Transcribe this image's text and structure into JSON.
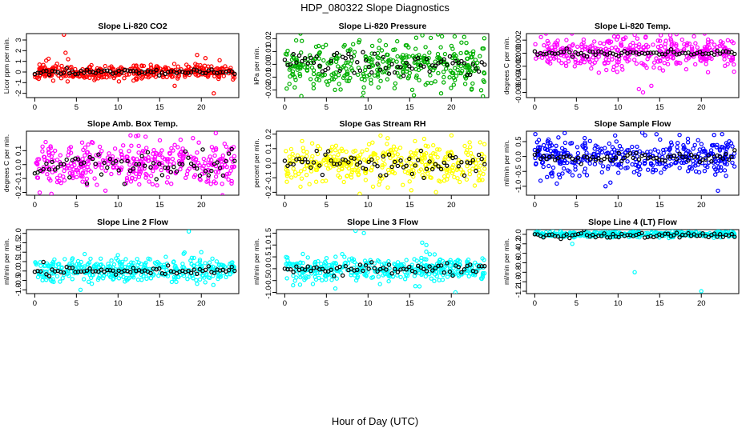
{
  "title": "HDP_080322  Slope Diagnostics",
  "xlabel": "Hour of Day (UTC)",
  "colors": {
    "ref": "#000000"
  },
  "chart_data": [
    {
      "type": "scatter",
      "title": "Slope Li-820 CO2",
      "ylabel": "Licor ppm per min.",
      "color": "#ff0000",
      "ylim": [
        -2.4,
        3.6
      ],
      "yticks": [
        -2,
        -1,
        0,
        1,
        2,
        3
      ],
      "xlim": [
        -1,
        24.5
      ],
      "xticks": [
        0,
        5,
        10,
        15,
        20
      ],
      "base": 0,
      "spread": 0.35,
      "outliers": [
        [
          3.5,
          3.5
        ],
        [
          3.7,
          1.8
        ],
        [
          19.5,
          1.6
        ],
        [
          20.5,
          1.3
        ],
        [
          21.5,
          -2.0
        ],
        [
          16.8,
          -1.3
        ],
        [
          4.0,
          1.2
        ],
        [
          22.2,
          1.1
        ]
      ],
      "ref_base": 0,
      "ref_spread": 0.12,
      "seed": 11
    },
    {
      "type": "scatter",
      "title": "Slope Li-820 Pressure",
      "ylabel": "kPa per min.",
      "color": "#00b000",
      "ylim": [
        -0.026,
        0.024
      ],
      "yticks": [
        -0.02,
        -0.01,
        0.0,
        0.01,
        0.02
      ],
      "xlim": [
        -1,
        24.5
      ],
      "xticks": [
        0,
        5,
        10,
        15,
        20
      ],
      "base": 0,
      "spread": 0.009,
      "outliers": [
        [
          23.8,
          -0.025
        ],
        [
          7.2,
          0.015
        ],
        [
          13.5,
          0.018
        ],
        [
          9.5,
          -0.018
        ]
      ],
      "ref_base": 0,
      "ref_spread": 0.004,
      "seed": 23
    },
    {
      "type": "scatter",
      "title": "Slope Li-820 Temp.",
      "ylabel": "degrees C per min.",
      "color": "#ff00ff",
      "ylim": [
        -0.0068,
        0.003
      ],
      "yticks": [
        -0.006,
        -0.004,
        -0.002,
        0.0,
        0.002
      ],
      "xlim": [
        -1,
        24.5
      ],
      "xticks": [
        0,
        5,
        10,
        15,
        20
      ],
      "base": 0,
      "spread": 0.0012,
      "outliers": [
        [
          13.0,
          -0.006
        ],
        [
          12.5,
          -0.0055
        ],
        [
          14.0,
          -0.005
        ],
        [
          10.0,
          0.0025
        ],
        [
          12.0,
          0.0028
        ]
      ],
      "ref_base": 0,
      "ref_spread": 0.0002,
      "seed": 37
    },
    {
      "type": "scatter",
      "title": "Slope Amb. Box Temp.",
      "ylabel": "degrees C per min.",
      "color": "#ff00ff",
      "ylim": [
        -0.22,
        0.24
      ],
      "yticks": [
        -0.2,
        -0.1,
        0.0,
        0.1
      ],
      "xlim": [
        -1,
        24.5
      ],
      "xticks": [
        0,
        5,
        10,
        15,
        20
      ],
      "base": 0,
      "spread": 0.08,
      "outliers": [
        [
          2.0,
          -0.21
        ],
        [
          11.5,
          0.21
        ],
        [
          19.0,
          0.19
        ]
      ],
      "ref_base": 0,
      "ref_spread": 0.05,
      "seed": 41
    },
    {
      "type": "scatter",
      "title": "Slope Gas Stream RH",
      "ylabel": "percent per min.",
      "color": "#ffff00",
      "ylim": [
        -0.22,
        0.22
      ],
      "yticks": [
        -0.2,
        -0.1,
        0.0,
        0.1,
        0.2
      ],
      "xlim": [
        -1,
        24.5
      ],
      "xticks": [
        0,
        5,
        10,
        15,
        20
      ],
      "base": 0,
      "spread": 0.07,
      "outliers": [
        [
          9.0,
          -0.21
        ],
        [
          11.5,
          0.19
        ]
      ],
      "ref_base": 0,
      "ref_spread": 0.04,
      "seed": 53
    },
    {
      "type": "scatter",
      "title": "Slope Sample Flow",
      "ylabel": "ml/min per min.",
      "color": "#0000ff",
      "ylim": [
        -1.3,
        0.85
      ],
      "yticks": [
        -1.0,
        -0.5,
        0.0,
        0.5
      ],
      "xlim": [
        -1,
        24.5
      ],
      "xticks": [
        0,
        5,
        10,
        15,
        20
      ],
      "base": 0,
      "spread": 0.28,
      "outliers": [
        [
          8.5,
          -1.0
        ],
        [
          22.0,
          -1.15
        ],
        [
          22.5,
          0.75
        ],
        [
          3.0,
          -0.7
        ]
      ],
      "ref_base": -0.05,
      "ref_spread": 0.1,
      "seed": 67
    },
    {
      "type": "scatter",
      "title": "Slope Line 2 Flow",
      "ylabel": "ml/min per min.",
      "color": "#00ffff",
      "ylim": [
        -1.2,
        2.2
      ],
      "yticks": [
        -1.0,
        -0.5,
        0.0,
        0.5,
        1.0,
        1.5,
        2.0
      ],
      "xlim": [
        -1,
        24.5
      ],
      "xticks": [
        0,
        5,
        10,
        15,
        20
      ],
      "base": 0.05,
      "spread": 0.3,
      "outliers": [
        [
          18.5,
          2.1
        ],
        [
          5.5,
          -1.0
        ],
        [
          20.0,
          1.0
        ],
        [
          6.0,
          0.9
        ]
      ],
      "ref_base": 0,
      "ref_spread": 0.12,
      "seed": 79
    },
    {
      "type": "scatter",
      "title": "Slope Line 3 Flow",
      "ylabel": "ml/min per min.",
      "color": "#00ffff",
      "ylim": [
        -1.05,
        1.65
      ],
      "yticks": [
        -1.0,
        -0.5,
        0.0,
        0.5,
        1.0,
        1.5
      ],
      "xlim": [
        -1,
        24.5
      ],
      "xticks": [
        0,
        5,
        10,
        15,
        20
      ],
      "base": 0,
      "spread": 0.25,
      "outliers": [
        [
          8.5,
          1.6
        ],
        [
          9.5,
          1.5
        ],
        [
          16.5,
          1.1
        ],
        [
          17.0,
          1.0
        ],
        [
          1.0,
          -0.7
        ],
        [
          20.5,
          -1.0
        ]
      ],
      "ref_base": 0,
      "ref_spread": 0.13,
      "seed": 83
    },
    {
      "type": "scatter",
      "title": "Slope Line 4 (LT) Flow",
      "ylabel": "ml/min per min.",
      "color": "#00ffff",
      "ylim": [
        -1.25,
        0.1
      ],
      "yticks": [
        -1.2,
        -1.0,
        -0.8,
        -0.6,
        -0.4,
        -0.2,
        0.0
      ],
      "xlim": [
        -1,
        24.5
      ],
      "xticks": [
        0,
        5,
        10,
        15,
        20
      ],
      "base": 0,
      "spread": 0.03,
      "outliers": [
        [
          12.0,
          -0.8
        ],
        [
          20.0,
          -1.2
        ],
        [
          4.5,
          -0.2
        ]
      ],
      "ref_base": -0.02,
      "ref_spread": 0.03,
      "seed": 97
    }
  ]
}
